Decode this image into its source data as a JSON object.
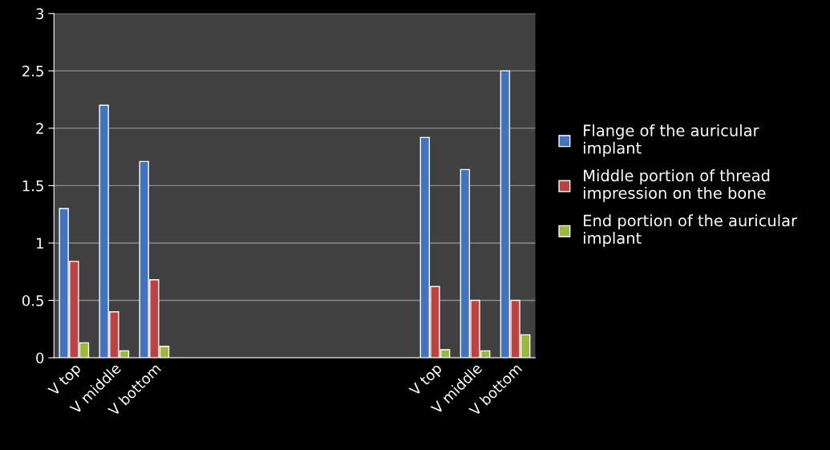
{
  "chart_data": {
    "type": "bar",
    "categories": [
      "V top",
      "V middle",
      "V bottom",
      null,
      null,
      null,
      null,
      null,
      null,
      "V top",
      "V middle",
      "V bottom"
    ],
    "series": [
      {
        "name": "Flange of the auricular\nimplant",
        "color": "#3f74c4",
        "values": [
          1.3,
          2.2,
          1.71,
          null,
          null,
          null,
          null,
          null,
          null,
          1.92,
          1.64,
          2.5
        ]
      },
      {
        "name": "Middle portion of thread\nimpression on the bone",
        "color": "#c0413d",
        "values": [
          0.84,
          0.4,
          0.68,
          null,
          null,
          null,
          null,
          null,
          null,
          0.62,
          0.5,
          0.5
        ]
      },
      {
        "name": "End portion of the auricular\nimplant",
        "color": "#98bb3a",
        "values": [
          0.13,
          0.06,
          0.1,
          null,
          null,
          null,
          null,
          null,
          null,
          0.07,
          0.06,
          0.2
        ]
      }
    ],
    "ylim": [
      0,
      3
    ],
    "yticks": [
      0,
      {
        "value": 0.5,
        "label": "0.5"
      },
      1,
      {
        "value": 1.5,
        "label": "1.5"
      },
      2,
      {
        "value": 2.5,
        "label": "2.5"
      },
      3
    ],
    "grid": "y",
    "legend": "right"
  }
}
